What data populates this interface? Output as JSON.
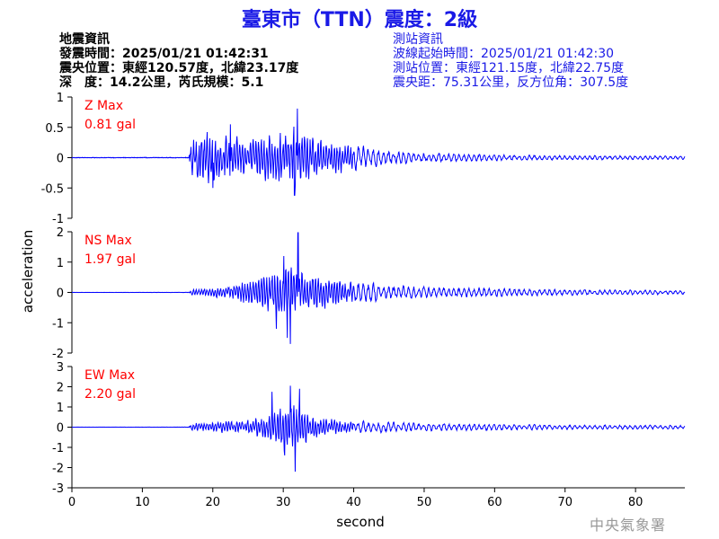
{
  "header": {
    "title": "臺東市（TTN）震度：2級"
  },
  "quake_info": {
    "heading": "地震資訊",
    "origin_time": "發震時間：2025/01/21 01:42:31",
    "epicenter": "震央位置：東經120.57度，北緯23.17度",
    "depth_magnitude": "深　度：14.2公里，芮氏規模：5.1"
  },
  "station_info": {
    "heading": "測站資訊",
    "wave_start": "波線起始時間：2025/01/21 01:42:30",
    "location": "測站位置：東經121.15度，北緯22.75度",
    "distance_azimuth": "震央距：75.31公里，反方位角：307.5度"
  },
  "watermark": "中央氣象署",
  "colors": {
    "title": "#1a1ae6",
    "trace": "#0000ff",
    "peak_label": "#ff0000",
    "axis": "#000000"
  },
  "chart_data": {
    "type": "line",
    "xlabel": "second",
    "ylabel": "acceleration",
    "xlim": [
      0,
      87
    ],
    "xticks": [
      0,
      10,
      20,
      30,
      40,
      50,
      60,
      70,
      80
    ],
    "grid": false,
    "panels": [
      {
        "name": "Z",
        "peak_label": "Z Max",
        "peak_value": "0.81 gal",
        "ylim": [
          -1,
          1
        ],
        "yticks": [
          -1,
          -0.5,
          0,
          0.5,
          1
        ],
        "signal_start": 16.8,
        "envelope": [
          [
            0,
            0.008
          ],
          [
            16.6,
            0.01
          ],
          [
            17,
            0.4
          ],
          [
            19,
            0.5
          ],
          [
            22,
            0.4
          ],
          [
            25,
            0.35
          ],
          [
            28,
            0.45
          ],
          [
            31,
            0.6
          ],
          [
            33,
            0.45
          ],
          [
            36,
            0.35
          ],
          [
            40,
            0.22
          ],
          [
            45,
            0.12
          ],
          [
            50,
            0.08
          ],
          [
            60,
            0.05
          ],
          [
            70,
            0.04
          ],
          [
            87,
            0.03
          ]
        ],
        "peaks": [
          {
            "x": 32.0,
            "y": 0.81
          },
          {
            "x": 31.6,
            "y": -0.62
          },
          {
            "x": 22.5,
            "y": 0.55
          },
          {
            "x": 20.0,
            "y": -0.5
          }
        ]
      },
      {
        "name": "NS",
        "peak_label": "NS Max",
        "peak_value": "1.97 gal",
        "ylim": [
          -2,
          2
        ],
        "yticks": [
          -2,
          -1,
          0,
          1,
          2
        ],
        "signal_start": 16.8,
        "envelope": [
          [
            0,
            0.005
          ],
          [
            16.6,
            0.01
          ],
          [
            17,
            0.1
          ],
          [
            20,
            0.18
          ],
          [
            23,
            0.3
          ],
          [
            26,
            0.55
          ],
          [
            28,
            0.8
          ],
          [
            30,
            1.0
          ],
          [
            32,
            0.95
          ],
          [
            34,
            0.75
          ],
          [
            37,
            0.5
          ],
          [
            40,
            0.38
          ],
          [
            45,
            0.25
          ],
          [
            50,
            0.2
          ],
          [
            60,
            0.15
          ],
          [
            70,
            0.1
          ],
          [
            87,
            0.07
          ]
        ],
        "peaks": [
          {
            "x": 32.1,
            "y": 1.97
          },
          {
            "x": 31.0,
            "y": -1.7
          },
          {
            "x": 30.1,
            "y": 1.2
          },
          {
            "x": 29.0,
            "y": -1.2
          },
          {
            "x": 30.6,
            "y": -1.5
          }
        ]
      },
      {
        "name": "EW",
        "peak_label": "EW Max",
        "peak_value": "2.20 gal",
        "ylim": [
          -3,
          3
        ],
        "yticks": [
          -3,
          -2,
          -1,
          0,
          1,
          2,
          3
        ],
        "signal_start": 16.8,
        "envelope": [
          [
            0,
            0.008
          ],
          [
            16.6,
            0.015
          ],
          [
            17,
            0.25
          ],
          [
            20,
            0.3
          ],
          [
            24,
            0.35
          ],
          [
            27,
            0.6
          ],
          [
            29,
            1.1
          ],
          [
            31,
            1.5
          ],
          [
            33,
            1.0
          ],
          [
            35,
            0.6
          ],
          [
            38,
            0.4
          ],
          [
            42,
            0.3
          ],
          [
            50,
            0.2
          ],
          [
            60,
            0.16
          ],
          [
            70,
            0.12
          ],
          [
            87,
            0.1
          ]
        ],
        "peaks": [
          {
            "x": 31.7,
            "y": -2.2
          },
          {
            "x": 31.0,
            "y": 2.05
          },
          {
            "x": 28.4,
            "y": 1.75
          },
          {
            "x": 32.3,
            "y": 1.9
          },
          {
            "x": 30.2,
            "y": -1.4
          }
        ]
      }
    ]
  }
}
